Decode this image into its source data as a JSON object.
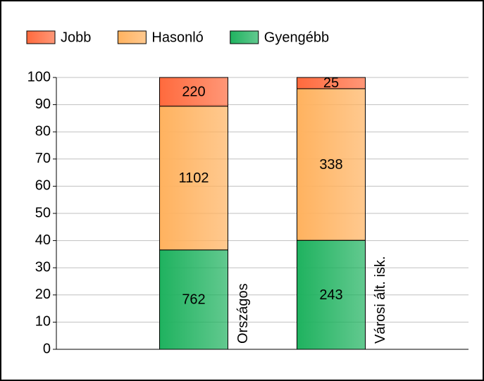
{
  "chart_data": {
    "type": "stacked_percent_bar",
    "categories": [
      "Országos",
      "Városi ált. isk."
    ],
    "series": [
      {
        "name": "Gyengébb",
        "color": "#1fb25f",
        "values": [
          762,
          243
        ]
      },
      {
        "name": "Hasonló",
        "color": "#ffb25f",
        "values": [
          1102,
          338
        ]
      },
      {
        "name": "Jobb",
        "color": "#ff6a3d",
        "values": [
          220,
          25
        ]
      }
    ],
    "legend_order": [
      2,
      1,
      0
    ],
    "ylim": [
      0,
      100
    ],
    "yticks": [
      0,
      10,
      20,
      30,
      40,
      50,
      60,
      70,
      80,
      90,
      100
    ],
    "grid": true
  }
}
